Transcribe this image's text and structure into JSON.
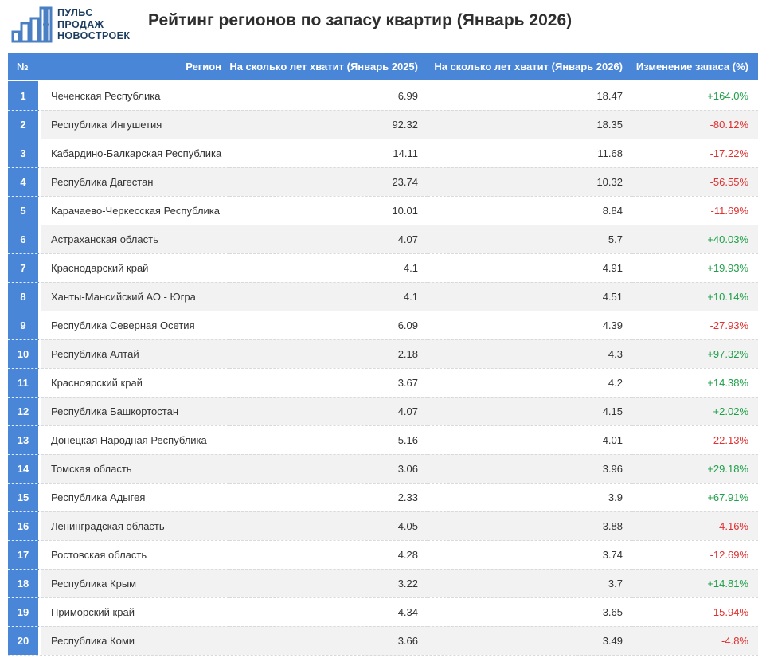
{
  "brand": {
    "name_lines": "ПУЛЬС\nПРОДАЖ\nНОВОСТРОЕК"
  },
  "page_title": "Рейтинг регионов по запасу квартир (Январь 2026)",
  "colors": {
    "header_blue": "#4a86d8",
    "row_alt_gray": "#f2f2f2",
    "positive_green": "#1fa048",
    "negative_red": "#e03131",
    "brand_navy": "#1c3d5f",
    "brand_icon_blue": "#4a7fc4"
  },
  "icons": {
    "logo": "bar-chart-buildings-icon"
  },
  "chart_data": {
    "type": "table",
    "title": "Рейтинг регионов по запасу квартир (Январь 2026)",
    "columns": [
      "№",
      "Регион",
      "На сколько лет хватит (Январь 2025)",
      "На сколько лет хватит (Январь 2026)",
      "Изменение запаса (%)"
    ],
    "rows": [
      [
        "1",
        "Чеченская Республика",
        "6.99",
        "18.47",
        "+164.0%"
      ],
      [
        "2",
        "Республика Ингушетия",
        "92.32",
        "18.35",
        "-80.12%"
      ],
      [
        "3",
        "Кабардино-Балкарская Республика",
        "14.11",
        "11.68",
        "-17.22%"
      ],
      [
        "4",
        "Республика Дагестан",
        "23.74",
        "10.32",
        "-56.55%"
      ],
      [
        "5",
        "Карачаево-Черкесская Республика",
        "10.01",
        "8.84",
        "-11.69%"
      ],
      [
        "6",
        "Астраханская область",
        "4.07",
        "5.7",
        "+40.03%"
      ],
      [
        "7",
        "Краснодарский край",
        "4.1",
        "4.91",
        "+19.93%"
      ],
      [
        "8",
        "Ханты-Мансийский АО - Югра",
        "4.1",
        "4.51",
        "+10.14%"
      ],
      [
        "9",
        "Республика Северная Осетия",
        "6.09",
        "4.39",
        "-27.93%"
      ],
      [
        "10",
        "Республика Алтай",
        "2.18",
        "4.3",
        "+97.32%"
      ],
      [
        "11",
        "Красноярский край",
        "3.67",
        "4.2",
        "+14.38%"
      ],
      [
        "12",
        "Республика Башкортостан",
        "4.07",
        "4.15",
        "+2.02%"
      ],
      [
        "13",
        "Донецкая Народная Республика",
        "5.16",
        "4.01",
        "-22.13%"
      ],
      [
        "14",
        "Томская область",
        "3.06",
        "3.96",
        "+29.18%"
      ],
      [
        "15",
        "Республика Адыгея",
        "2.33",
        "3.9",
        "+67.91%"
      ],
      [
        "16",
        "Ленинградская область",
        "4.05",
        "3.88",
        "-4.16%"
      ],
      [
        "17",
        "Ростовская область",
        "4.28",
        "3.74",
        "-12.69%"
      ],
      [
        "18",
        "Республика Крым",
        "3.22",
        "3.7",
        "+14.81%"
      ],
      [
        "19",
        "Приморский край",
        "4.34",
        "3.65",
        "-15.94%"
      ],
      [
        "20",
        "Республика Коми",
        "3.66",
        "3.49",
        "-4.8%"
      ]
    ]
  }
}
